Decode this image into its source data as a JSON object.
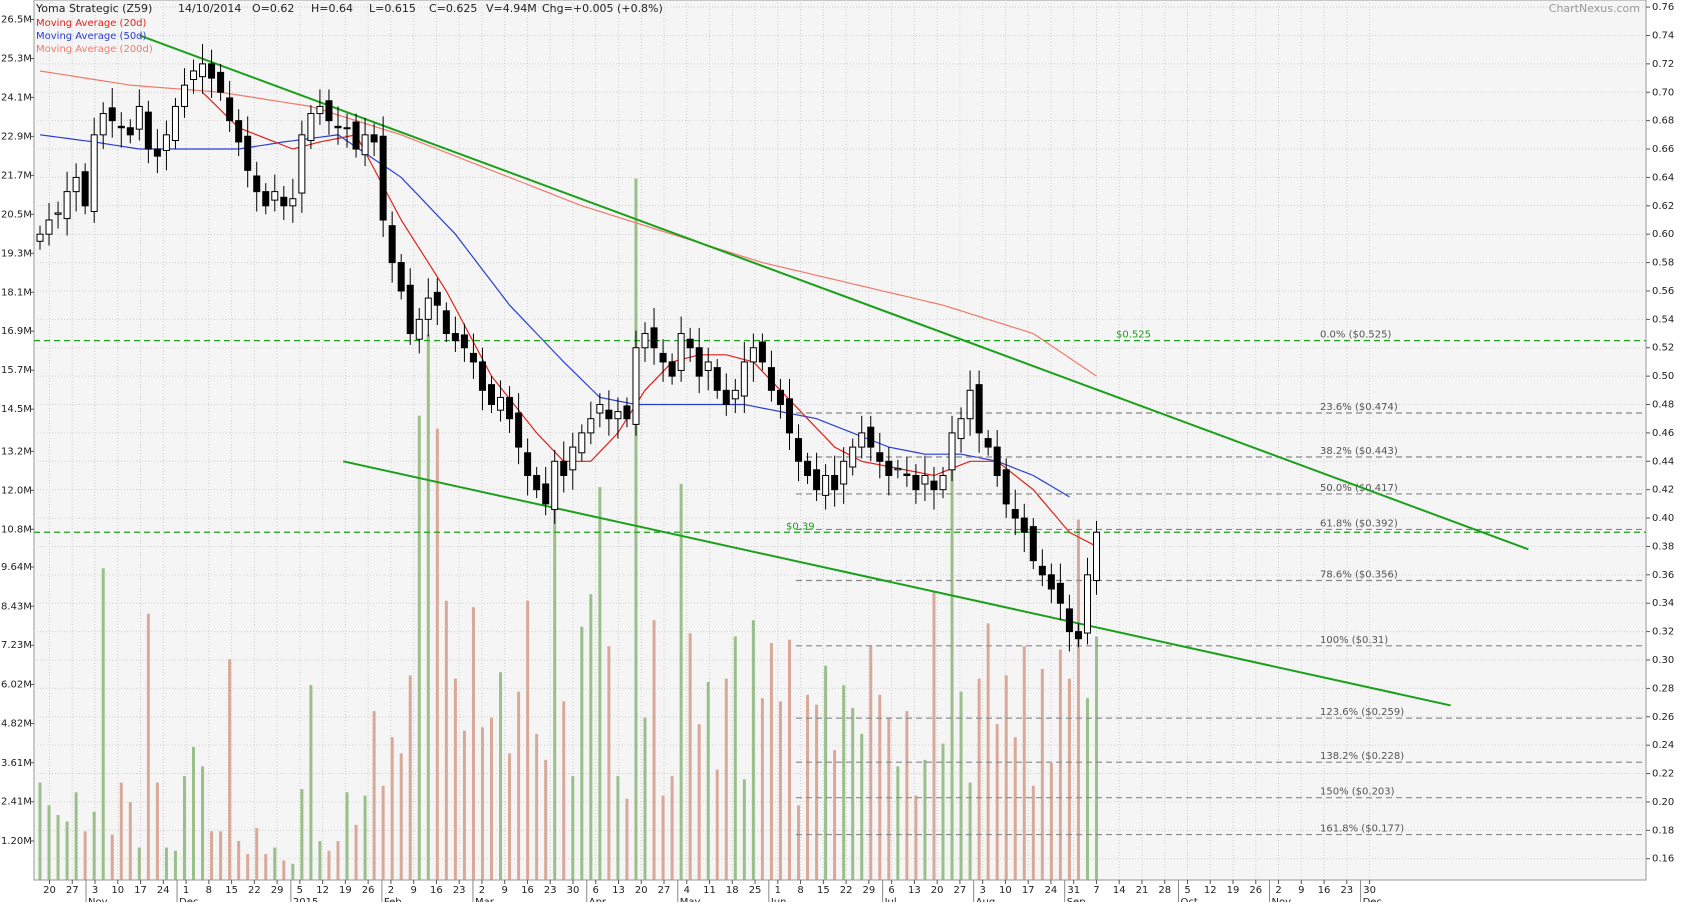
{
  "header": {
    "title": "Yoma Strategic (Z59)",
    "date": "14/10/2014",
    "open": "O=0.62",
    "high": "H=0.64",
    "low": "L=0.615",
    "close": "C=0.625",
    "volume": "V=4.94M",
    "change": "Chg=+0.005 (+0.8%)",
    "watermark": "ChartNexus.com"
  },
  "legend": [
    {
      "label": "Moving Average (20d)",
      "color": "#e0201b"
    },
    {
      "label": "Moving Average (50d)",
      "color": "#2a3fd6"
    },
    {
      "label": "Moving Average (200d)",
      "color": "#f07a6a"
    }
  ],
  "colors": {
    "up_candle": "#ffffff",
    "down_candle": "#000000",
    "trendline": "#1aa01a",
    "support": "#1aa01a",
    "fib": "#888888",
    "vol_up": "#9bbf8a",
    "vol_down": "#d9a898",
    "ma20": "#e0201b",
    "ma50": "#2a3fd6",
    "ma200": "#f07a6a"
  },
  "chart_data": {
    "type": "candlestick",
    "price_axis": {
      "ticks": [
        "0.76",
        "0.74",
        "0.72",
        "0.70",
        "0.68",
        "0.66",
        "0.64",
        "0.62",
        "0.60",
        "0.58",
        "0.56",
        "0.54",
        "0.52",
        "0.50",
        "0.48",
        "0.46",
        "0.44",
        "0.42",
        "0.40",
        "0.38",
        "0.36",
        "0.34",
        "0.32",
        "0.30",
        "0.28",
        "0.26",
        "0.24",
        "0.22",
        "0.20",
        "0.18",
        "0.16"
      ],
      "range": [
        0.145,
        0.765
      ]
    },
    "volume_axis": {
      "ticks": [
        "26.5M",
        "25.3M",
        "24.1M",
        "22.9M",
        "21.7M",
        "20.5M",
        "19.3M",
        "18.1M",
        "16.9M",
        "15.7M",
        "14.5M",
        "13.2M",
        "12.0M",
        "10.8M",
        "9.64M",
        "8.43M",
        "7.23M",
        "6.02M",
        "4.82M",
        "3.61M",
        "2.41M",
        "1.20M"
      ],
      "range": [
        0,
        27.1
      ]
    },
    "date_axis": {
      "day_ticks": [
        "20",
        "27",
        "3",
        "10",
        "17",
        "24",
        "1",
        "8",
        "15",
        "22",
        "29",
        "5",
        "12",
        "19",
        "26",
        "2",
        "9",
        "16",
        "23",
        "2",
        "9",
        "16",
        "23",
        "30",
        "6",
        "13",
        "20",
        "27",
        "4",
        "11",
        "18",
        "25",
        "1",
        "8",
        "15",
        "22",
        "29",
        "6",
        "13",
        "20",
        "27",
        "3",
        "10",
        "17",
        "24",
        "31",
        "7",
        "14",
        "21",
        "28",
        "5",
        "12",
        "19",
        "26",
        "2",
        "9",
        "16",
        "23",
        "30"
      ],
      "month_ticks": [
        "Nov",
        "Dec",
        "2015",
        "Feb",
        "Mar",
        "Apr",
        "May",
        "Jun",
        "Jul",
        "Aug",
        "Sep",
        "Oct",
        "Nov",
        "Dec"
      ]
    },
    "levels": [
      {
        "type": "support",
        "value": 0.525,
        "label": "$0.525"
      },
      {
        "type": "support",
        "value": 0.39,
        "label": "$0.39"
      }
    ],
    "fibonacci": [
      {
        "pct": "0.0%",
        "value": 0.525,
        "label": "($0.525)"
      },
      {
        "pct": "23.6%",
        "value": 0.474,
        "label": "($0.474)"
      },
      {
        "pct": "38.2%",
        "value": 0.443,
        "label": "($0.443)"
      },
      {
        "pct": "50.0%",
        "value": 0.417,
        "label": "($0.417)"
      },
      {
        "pct": "61.8%",
        "value": 0.392,
        "label": "($0.392)"
      },
      {
        "pct": "78.6%",
        "value": 0.356,
        "label": "($0.356)"
      },
      {
        "pct": "100%",
        "value": 0.31,
        "label": "($0.31)"
      },
      {
        "pct": "123.6%",
        "value": 0.259,
        "label": "($0.259)"
      },
      {
        "pct": "138.2%",
        "value": 0.228,
        "label": "($0.228)"
      },
      {
        "pct": "150%",
        "value": 0.203,
        "label": "($0.203)"
      },
      {
        "pct": "161.8%",
        "value": 0.177,
        "label": "($0.177)"
      }
    ],
    "trendlines": [
      {
        "name": "upper",
        "x1": 0.0655,
        "p1": 0.74,
        "x2": 0.927,
        "p2": 0.378
      },
      {
        "name": "lower",
        "x1": 0.1918,
        "p1": 0.44,
        "x2": 0.8788,
        "p2": 0.268
      }
    ],
    "candle_anchors": [
      [
        0,
        0.6
      ],
      [
        1,
        0.61
      ],
      [
        2,
        0.615
      ],
      [
        3,
        0.63
      ],
      [
        4,
        0.64
      ],
      [
        5,
        0.62
      ],
      [
        6,
        0.67
      ],
      [
        7,
        0.685
      ],
      [
        8,
        0.68
      ],
      [
        9,
        0.675
      ],
      [
        10,
        0.67
      ],
      [
        11,
        0.69
      ],
      [
        12,
        0.66
      ],
      [
        13,
        0.655
      ],
      [
        14,
        0.67
      ],
      [
        15,
        0.69
      ],
      [
        16,
        0.705
      ],
      [
        17,
        0.715
      ],
      [
        18,
        0.72
      ],
      [
        19,
        0.71
      ],
      [
        20,
        0.7
      ],
      [
        21,
        0.68
      ],
      [
        22,
        0.665
      ],
      [
        23,
        0.645
      ],
      [
        24,
        0.63
      ],
      [
        25,
        0.62
      ],
      [
        26,
        0.63
      ],
      [
        27,
        0.62
      ],
      [
        28,
        0.625
      ],
      [
        29,
        0.67
      ],
      [
        30,
        0.685
      ],
      [
        31,
        0.69
      ],
      [
        32,
        0.68
      ],
      [
        33,
        0.675
      ],
      [
        34,
        0.675
      ],
      [
        35,
        0.66
      ],
      [
        36,
        0.67
      ],
      [
        37,
        0.665
      ],
      [
        38,
        0.61
      ],
      [
        39,
        0.58
      ],
      [
        40,
        0.56
      ],
      [
        41,
        0.53
      ],
      [
        42,
        0.54
      ],
      [
        43,
        0.555
      ],
      [
        44,
        0.55
      ],
      [
        45,
        0.53
      ],
      [
        46,
        0.525
      ],
      [
        47,
        0.52
      ],
      [
        48,
        0.51
      ],
      [
        49,
        0.49
      ],
      [
        50,
        0.48
      ],
      [
        51,
        0.485
      ],
      [
        52,
        0.47
      ],
      [
        53,
        0.45
      ],
      [
        54,
        0.43
      ],
      [
        55,
        0.42
      ],
      [
        56,
        0.41
      ],
      [
        57,
        0.44
      ],
      [
        58,
        0.43
      ],
      [
        59,
        0.45
      ],
      [
        60,
        0.46
      ],
      [
        61,
        0.47
      ],
      [
        62,
        0.48
      ],
      [
        63,
        0.47
      ],
      [
        64,
        0.475
      ],
      [
        65,
        0.47
      ],
      [
        66,
        0.52
      ],
      [
        67,
        0.53
      ],
      [
        68,
        0.52
      ],
      [
        69,
        0.51
      ],
      [
        70,
        0.5
      ],
      [
        71,
        0.53
      ],
      [
        72,
        0.52
      ],
      [
        73,
        0.5
      ],
      [
        74,
        0.51
      ],
      [
        75,
        0.49
      ],
      [
        76,
        0.48
      ],
      [
        77,
        0.49
      ],
      [
        78,
        0.51
      ],
      [
        79,
        0.52
      ],
      [
        80,
        0.51
      ],
      [
        81,
        0.49
      ],
      [
        82,
        0.48
      ],
      [
        83,
        0.46
      ],
      [
        84,
        0.44
      ],
      [
        85,
        0.43
      ],
      [
        86,
        0.42
      ],
      [
        87,
        0.43
      ],
      [
        88,
        0.42
      ],
      [
        89,
        0.44
      ],
      [
        90,
        0.45
      ],
      [
        91,
        0.46
      ],
      [
        92,
        0.45
      ],
      [
        93,
        0.44
      ],
      [
        94,
        0.43
      ],
      [
        95,
        0.435
      ],
      [
        96,
        0.43
      ],
      [
        97,
        0.42
      ],
      [
        98,
        0.43
      ],
      [
        99,
        0.42
      ],
      [
        100,
        0.43
      ],
      [
        101,
        0.46
      ],
      [
        102,
        0.47
      ],
      [
        103,
        0.49
      ],
      [
        104,
        0.46
      ],
      [
        105,
        0.45
      ],
      [
        106,
        0.43
      ],
      [
        107,
        0.41
      ],
      [
        108,
        0.4
      ],
      [
        109,
        0.39
      ],
      [
        110,
        0.37
      ],
      [
        111,
        0.36
      ],
      [
        112,
        0.35
      ],
      [
        113,
        0.34
      ],
      [
        114,
        0.32
      ],
      [
        115,
        0.315
      ],
      [
        116,
        0.36
      ],
      [
        117,
        0.39
      ]
    ],
    "ma20_anchors": [
      [
        18,
        0.7
      ],
      [
        22,
        0.675
      ],
      [
        28,
        0.66
      ],
      [
        31,
        0.665
      ],
      [
        35,
        0.67
      ],
      [
        40,
        0.61
      ],
      [
        45,
        0.56
      ],
      [
        50,
        0.5
      ],
      [
        55,
        0.46
      ],
      [
        58,
        0.44
      ],
      [
        61,
        0.44
      ],
      [
        64,
        0.46
      ],
      [
        67,
        0.49
      ],
      [
        70,
        0.51
      ],
      [
        73,
        0.515
      ],
      [
        76,
        0.515
      ],
      [
        79,
        0.51
      ],
      [
        82,
        0.49
      ],
      [
        85,
        0.47
      ],
      [
        88,
        0.45
      ],
      [
        91,
        0.44
      ],
      [
        95,
        0.435
      ],
      [
        99,
        0.43
      ],
      [
        103,
        0.44
      ],
      [
        106,
        0.44
      ],
      [
        110,
        0.42
      ],
      [
        114,
        0.39
      ],
      [
        117,
        0.38
      ]
    ],
    "ma50_anchors": [
      [
        0,
        0.67
      ],
      [
        6,
        0.665
      ],
      [
        11,
        0.66
      ],
      [
        16,
        0.66
      ],
      [
        22,
        0.66
      ],
      [
        27,
        0.665
      ],
      [
        33,
        0.67
      ],
      [
        40,
        0.64
      ],
      [
        46,
        0.6
      ],
      [
        52,
        0.55
      ],
      [
        58,
        0.51
      ],
      [
        62,
        0.485
      ],
      [
        66,
        0.48
      ],
      [
        70,
        0.48
      ],
      [
        74,
        0.48
      ],
      [
        78,
        0.48
      ],
      [
        82,
        0.475
      ],
      [
        86,
        0.47
      ],
      [
        90,
        0.46
      ],
      [
        94,
        0.45
      ],
      [
        98,
        0.445
      ],
      [
        102,
        0.445
      ],
      [
        106,
        0.44
      ],
      [
        110,
        0.43
      ],
      [
        114,
        0.415
      ]
    ],
    "ma200_anchors": [
      [
        0,
        0.715
      ],
      [
        10,
        0.705
      ],
      [
        20,
        0.7
      ],
      [
        30,
        0.69
      ],
      [
        40,
        0.67
      ],
      [
        50,
        0.645
      ],
      [
        60,
        0.62
      ],
      [
        70,
        0.6
      ],
      [
        80,
        0.58
      ],
      [
        90,
        0.565
      ],
      [
        100,
        0.55
      ],
      [
        110,
        0.53
      ],
      [
        117,
        0.5
      ]
    ],
    "volume_values": [
      3.0,
      2.3,
      2.0,
      1.8,
      2.7,
      1.5,
      2.1,
      9.6,
      1.4,
      3.0,
      2.4,
      1.0,
      8.2,
      3.0,
      1.0,
      0.9,
      3.2,
      4.1,
      3.5,
      1.5,
      1.5,
      6.8,
      1.2,
      0.8,
      1.6,
      0.8,
      1.0,
      0.6,
      0.5,
      2.8,
      6.0,
      1.2,
      0.9,
      1.2,
      2.7,
      1.7,
      2.6,
      5.2,
      2.9,
      4.4,
      3.9,
      6.3,
      14.3,
      16.8,
      13.9,
      8.6,
      6.2,
      4.6,
      8.4,
      4.7,
      5.0,
      6.4,
      3.9,
      5.8,
      8.6,
      4.5,
      3.7,
      12.8,
      5.5,
      3.2,
      7.8,
      8.8,
      12.1,
      7.2,
      3.2,
      2.5,
      21.6,
      5.0,
      8.0,
      2.6,
      3.2,
      12.2,
      7.6,
      4.8,
      6.1,
      3.4,
      6.2,
      7.5,
      3.1,
      8.0,
      5.6,
      7.3,
      5.5,
      7.4,
      2.3,
      5.7,
      5.4,
      6.6,
      4.0,
      6.0,
      5.3,
      4.5,
      7.2,
      5.7,
      5.0,
      3.5,
      5.2,
      2.6,
      3.7,
      8.9,
      4.2,
      13.1,
      5.8,
      3.0,
      6.2,
      7.9,
      4.8,
      6.3,
      4.4,
      7.2,
      2.9,
      6.5,
      3.6,
      7.1,
      6.2,
      11.1,
      5.6,
      7.5
    ]
  }
}
